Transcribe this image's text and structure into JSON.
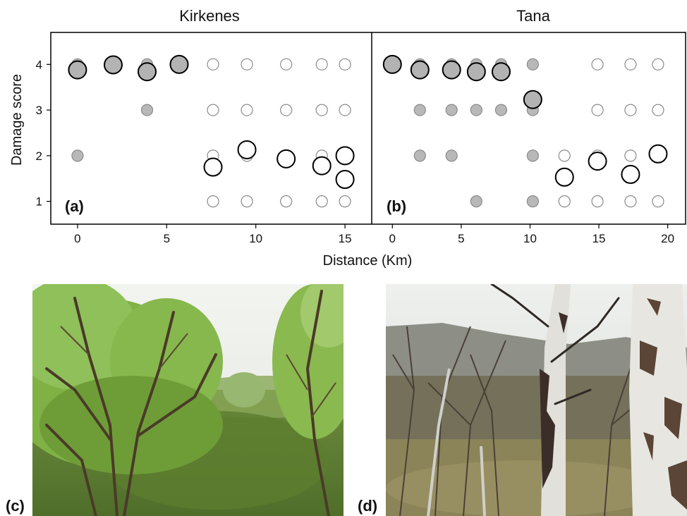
{
  "figure": {
    "xlabel": "Distance (Km)",
    "ylabel": "Damage score"
  },
  "chart_data": [
    {
      "type": "scatter",
      "title": "Kirkenes",
      "panel_label": "(a)",
      "xlabel": "Distance (Km)",
      "ylabel": "Damage score",
      "xlim": [
        -1.5,
        16.5
      ],
      "ylim": [
        0.5,
        4.7
      ],
      "xticks": [
        0,
        5,
        10,
        15
      ],
      "yticks": [
        1,
        2,
        3,
        4
      ],
      "series": [
        {
          "style": "gray-filled-small",
          "points": [
            [
              0,
              4
            ],
            [
              0,
              2
            ],
            [
              2,
              4
            ],
            [
              3.9,
              4
            ],
            [
              3.9,
              3
            ],
            [
              5.7,
              4
            ]
          ]
        },
        {
          "style": "gray-hollow-small",
          "points": [
            [
              7.6,
              4
            ],
            [
              7.6,
              3
            ],
            [
              7.6,
              2
            ],
            [
              7.6,
              1
            ],
            [
              9.5,
              4
            ],
            [
              9.5,
              3
            ],
            [
              9.5,
              2
            ],
            [
              9.5,
              1
            ],
            [
              11.7,
              4
            ],
            [
              11.7,
              3
            ],
            [
              11.7,
              2
            ],
            [
              11.7,
              1
            ],
            [
              13.7,
              4
            ],
            [
              13.7,
              3
            ],
            [
              13.7,
              2
            ],
            [
              13.7,
              1
            ],
            [
              15,
              4
            ],
            [
              15,
              3
            ],
            [
              15,
              2
            ],
            [
              15,
              1
            ]
          ]
        },
        {
          "style": "mean-filled-large",
          "points": [
            [
              0,
              3.88
            ],
            [
              2,
              3.99
            ],
            [
              3.9,
              3.84
            ],
            [
              5.7,
              4.0
            ]
          ]
        },
        {
          "style": "mean-hollow-large",
          "points": [
            [
              7.6,
              1.75
            ],
            [
              9.5,
              2.13
            ],
            [
              11.7,
              1.93
            ],
            [
              13.7,
              1.78
            ],
            [
              15,
              2.0
            ],
            [
              15,
              1.48
            ]
          ]
        }
      ]
    },
    {
      "type": "scatter",
      "title": "Tana",
      "panel_label": "(b)",
      "xlabel": "Distance (Km)",
      "ylabel": "Damage score",
      "xlim": [
        -1.5,
        21.3
      ],
      "ylim": [
        0.5,
        4.7
      ],
      "xticks": [
        0,
        5,
        10,
        15,
        20
      ],
      "yticks": [
        1,
        2,
        3,
        4
      ],
      "series": [
        {
          "style": "gray-filled-small",
          "points": [
            [
              0,
              4
            ],
            [
              2,
              4
            ],
            [
              2,
              3
            ],
            [
              2,
              2
            ],
            [
              4.3,
              4
            ],
            [
              4.3,
              3
            ],
            [
              4.3,
              2
            ],
            [
              6.1,
              4
            ],
            [
              6.1,
              3
            ],
            [
              6.1,
              1
            ],
            [
              7.9,
              4
            ],
            [
              7.9,
              3
            ],
            [
              10.2,
              4
            ],
            [
              10.2,
              3
            ],
            [
              10.2,
              2
            ],
            [
              10.2,
              1
            ]
          ]
        },
        {
          "style": "gray-hollow-small",
          "points": [
            [
              12.5,
              2
            ],
            [
              12.5,
              1
            ],
            [
              14.9,
              4
            ],
            [
              14.9,
              3
            ],
            [
              14.9,
              2
            ],
            [
              14.9,
              1
            ],
            [
              17.3,
              4
            ],
            [
              17.3,
              3
            ],
            [
              17.3,
              2
            ],
            [
              17.3,
              1
            ],
            [
              19.3,
              4
            ],
            [
              19.3,
              3
            ],
            [
              19.3,
              1
            ]
          ]
        },
        {
          "style": "mean-filled-large",
          "points": [
            [
              0,
              4.0
            ],
            [
              2,
              3.88
            ],
            [
              4.3,
              3.88
            ],
            [
              6.1,
              3.84
            ],
            [
              7.9,
              3.84
            ],
            [
              10.2,
              3.23
            ]
          ]
        },
        {
          "style": "mean-hollow-large",
          "points": [
            [
              12.5,
              1.53
            ],
            [
              14.9,
              1.88
            ],
            [
              17.3,
              1.59
            ],
            [
              19.3,
              2.04
            ]
          ]
        }
      ]
    }
  ],
  "photos": {
    "c": {
      "label": "(c)"
    },
    "d": {
      "label": "(d)"
    }
  }
}
